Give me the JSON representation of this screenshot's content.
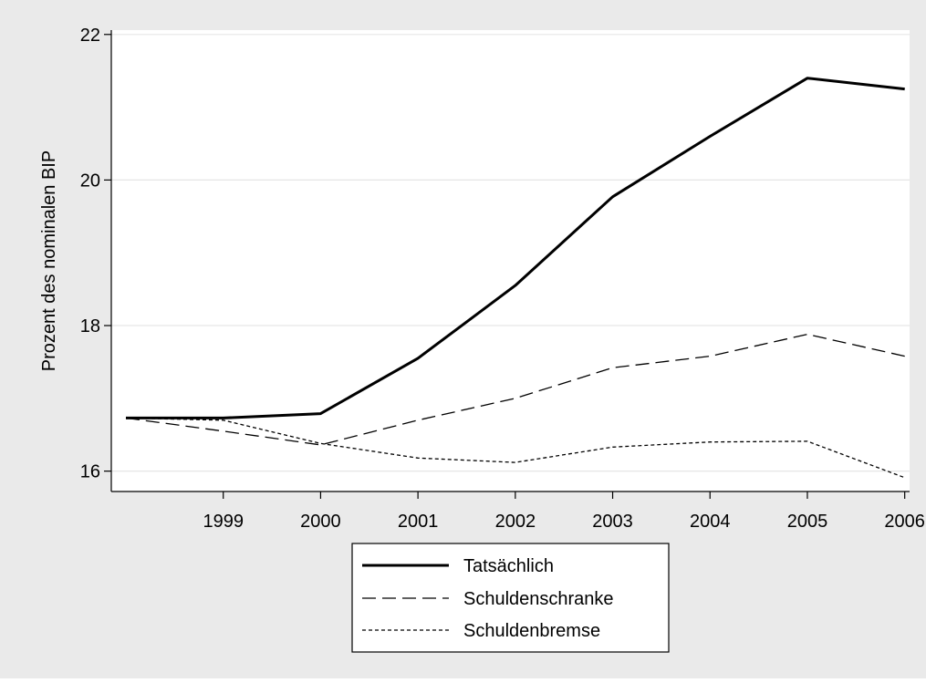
{
  "colors": {
    "outer_background": "#eaeaea",
    "plot_background": "#ffffff",
    "gridline": "#e6e6e6",
    "line": "#000000"
  },
  "chart_data": {
    "type": "line",
    "title": "",
    "xlabel": "",
    "ylabel": "Prozent des nominalen BIP",
    "x": [
      1998,
      1999,
      2000,
      2001,
      2002,
      2003,
      2004,
      2005,
      2006
    ],
    "x_tick_labels": [
      "1999",
      "2000",
      "2001",
      "2002",
      "2003",
      "2004",
      "2005",
      "2006"
    ],
    "y_ticks": [
      16,
      18,
      20,
      22
    ],
    "y_tick_labels": [
      "16",
      "18",
      "20",
      "22"
    ],
    "xlim": [
      1997.85,
      2006.05
    ],
    "ylim": [
      15.72,
      22.06
    ],
    "grid": "horizontal",
    "legend_position": "bottom",
    "series": [
      {
        "name": "Tatsächlich",
        "style": "solid-thick",
        "values": [
          16.73,
          16.73,
          16.79,
          17.55,
          18.55,
          19.77,
          20.6,
          21.4,
          21.25
        ]
      },
      {
        "name": "Schuldenschranke",
        "style": "long-dash",
        "values": [
          16.73,
          16.55,
          16.36,
          16.7,
          17.0,
          17.42,
          17.58,
          17.88,
          17.58
        ]
      },
      {
        "name": "Schuldenbremse",
        "style": "short-dash",
        "values": [
          16.73,
          16.7,
          16.38,
          16.18,
          16.12,
          16.33,
          16.4,
          16.41,
          15.91
        ]
      }
    ]
  }
}
